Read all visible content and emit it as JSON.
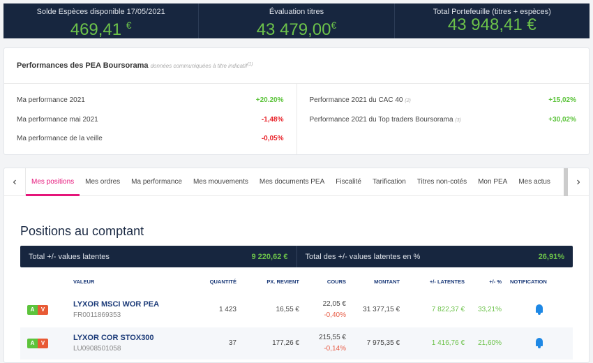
{
  "banner": [
    {
      "label": "Solde Espèces disponible 17/05/2021",
      "value": "469,41",
      "currency": "€"
    },
    {
      "label": "Évaluation titres",
      "value": "43 479,00",
      "currency": "€"
    },
    {
      "label": "Total Portefeuille (titres + espèces)",
      "value": "43 948,41 €",
      "currency": ""
    }
  ],
  "perf": {
    "title": "Performances des PEA Boursorama",
    "note": "données communiquées à titre indicatif",
    "note_ref": "(1)",
    "left": [
      {
        "label": "Ma performance 2021",
        "value": "+20.20%"
      },
      {
        "label": "Ma performance mai 2021",
        "value": "-1,48%"
      },
      {
        "label": "Ma performance de la veille",
        "value": "-0,05%"
      }
    ],
    "right": [
      {
        "label": "Performance 2021 du CAC 40",
        "ref": "(2)",
        "value": "+15,02%"
      },
      {
        "label": "Performance 2021 du Top traders Boursorama",
        "ref": "(3)",
        "value": "+30,02%"
      }
    ]
  },
  "tabs": [
    "Mes positions",
    "Mes ordres",
    "Ma performance",
    "Mes mouvements",
    "Mes documents PEA",
    "Fiscalité",
    "Tarification",
    "Titres non-cotés",
    "Mon PEA",
    "Mes actus"
  ],
  "positions": {
    "title": "Positions au comptant",
    "total_label": "Total +/- values latentes",
    "total_value": "9 220,62 €",
    "total_pct_label": "Total des +/- values latentes en %",
    "total_pct_value": "26,91%",
    "headers": [
      "VALEUR",
      "QUANTITÉ",
      "PX. REVIENT",
      "COURS",
      "MONTANT",
      "+/- LATENTES",
      "+/- %",
      "NOTIFICATION"
    ],
    "buy": "A",
    "sell": "V",
    "rows": [
      {
        "name": "LYXOR MSCI WOR PEA",
        "isin": "FR0011869353",
        "qty": "1 423",
        "px": "16,55 €",
        "cours": "22,05 €",
        "var": "-0,40%",
        "montant": "31 377,15 €",
        "latentes": "7 822,37 €",
        "pct": "33,21%"
      },
      {
        "name": "LYXOR COR STOX300",
        "isin": "LU0908501058",
        "qty": "37",
        "px": "177,26 €",
        "cours": "215,55 €",
        "var": "-0,14%",
        "montant": "7 975,35 €",
        "latentes": "1 416,76 €",
        "pct": "21,60%"
      }
    ]
  },
  "colors": {
    "navy": "#17263f",
    "green": "#6cc24a",
    "red": "#e8232a",
    "accent": "#e5157a"
  }
}
